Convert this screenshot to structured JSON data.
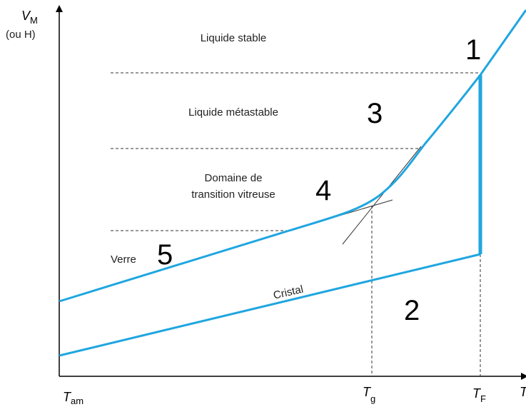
{
  "y_axis": {
    "symbol": "V",
    "subscript": "M",
    "alternative": "(ou H)"
  },
  "x_axis": {
    "symbol": "T"
  },
  "ticks": [
    {
      "symbol": "T",
      "subscript": "am"
    },
    {
      "symbol": "T",
      "subscript": "g"
    },
    {
      "symbol": "T",
      "subscript": "F"
    }
  ],
  "regions": {
    "stable": "Liquide stable",
    "metastable": "Liquide métastable",
    "transition": [
      "Domaine de",
      "transition vitreuse"
    ],
    "glass": "Verre",
    "crystal": "Cristal"
  },
  "markers": [
    "1",
    "2",
    "3",
    "4",
    "5"
  ]
}
